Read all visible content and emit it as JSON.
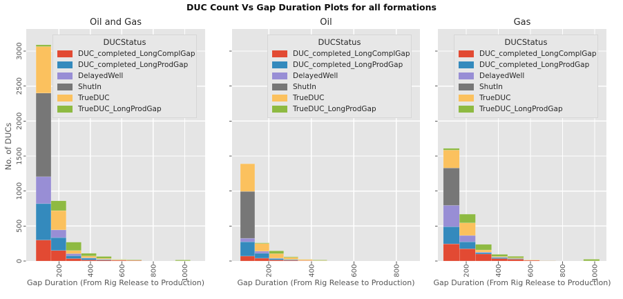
{
  "figure": {
    "title": "DUC Count Vs Gap Duration Plots for all formations"
  },
  "axes": {
    "ylabel": "No. of DUCs",
    "xlabel": "Gap Duration (From Rig Release to Production)",
    "yticks": [
      0,
      500,
      1000,
      1500,
      2000,
      2500,
      3000
    ],
    "ylim": [
      0,
      3316
    ]
  },
  "legend": {
    "title": "DUCStatus",
    "entries": [
      {
        "label": "DUC_completed_LongComplGap",
        "color": "#E24A33"
      },
      {
        "label": "DUC_completed_LongProdGap",
        "color": "#348ABD"
      },
      {
        "label": "DelayedWell",
        "color": "#988ED5"
      },
      {
        "label": "ShutIn",
        "color": "#777777"
      },
      {
        "label": "TrueDUC",
        "color": "#FBC15E"
      },
      {
        "label": "TrueDUC_LongProdGap",
        "color": "#8EBA42"
      }
    ]
  },
  "colors": {
    "panel_bg": "#E5E5E5",
    "grid": "#FFFFFF",
    "tick_label": "#555555",
    "title_text": "#262626"
  },
  "chart_data": [
    {
      "type": "bar",
      "mode": "stacked-histogram",
      "title": "Oil and Gas",
      "xlabel": "Gap Duration (From Rig Release to Production)",
      "ylabel": "No. of DUCs",
      "legend_position": "upper right",
      "grid": true,
      "series_order": [
        "DUC_completed_LongComplGap",
        "DUC_completed_LongProdGap",
        "DelayedWell",
        "ShutIn",
        "TrueDUC",
        "TrueDUC_LongProdGap"
      ],
      "xticks": [
        200,
        400,
        600,
        800,
        1000
      ],
      "xlim": [
        -8,
        1130
      ],
      "bins": [
        {
          "x0": 54,
          "x1": 150,
          "counts": [
            300,
            520,
            385,
            1195,
            665,
            25
          ]
        },
        {
          "x0": 150,
          "x1": 246,
          "counts": [
            150,
            185,
            110,
            0,
            275,
            140
          ]
        },
        {
          "x0": 246,
          "x1": 342,
          "counts": [
            35,
            40,
            30,
            0,
            45,
            120
          ]
        },
        {
          "x0": 342,
          "x1": 438,
          "counts": [
            15,
            25,
            6,
            0,
            26,
            38
          ]
        },
        {
          "x0": 438,
          "x1": 534,
          "counts": [
            12,
            10,
            3,
            0,
            12,
            28
          ]
        },
        {
          "x0": 534,
          "x1": 630,
          "counts": [
            10,
            4,
            0,
            0,
            8,
            4
          ]
        },
        {
          "x0": 630,
          "x1": 726,
          "counts": [
            8,
            0,
            0,
            0,
            3,
            8
          ]
        },
        {
          "x0": 940,
          "x1": 1036,
          "counts": [
            2,
            0,
            0,
            0,
            0,
            13
          ]
        }
      ]
    },
    {
      "type": "bar",
      "mode": "stacked-histogram",
      "title": "Oil",
      "xlabel": "Gap Duration (From Rig Release to Production)",
      "ylabel": "No. of DUCs",
      "legend_position": "upper right",
      "grid": true,
      "series_order": [
        "DUC_completed_LongComplGap",
        "DUC_completed_LongProdGap",
        "DelayedWell",
        "ShutIn",
        "TrueDUC",
        "TrueDUC_LongProdGap"
      ],
      "xticks": [
        200,
        400,
        600,
        800
      ],
      "xlim": [
        27,
        911
      ],
      "bins": [
        {
          "x0": 66,
          "x1": 134,
          "counts": [
            70,
            205,
            50,
            670,
            395,
            0
          ]
        },
        {
          "x0": 134,
          "x1": 202,
          "counts": [
            40,
            70,
            30,
            0,
            110,
            10
          ]
        },
        {
          "x0": 202,
          "x1": 270,
          "counts": [
            15,
            20,
            5,
            0,
            65,
            40
          ]
        },
        {
          "x0": 270,
          "x1": 338,
          "counts": [
            10,
            10,
            2,
            0,
            30,
            10
          ]
        },
        {
          "x0": 338,
          "x1": 406,
          "counts": [
            5,
            3,
            0,
            0,
            15,
            2
          ]
        },
        {
          "x0": 406,
          "x1": 474,
          "counts": [
            3,
            0,
            0,
            0,
            3,
            9
          ]
        }
      ]
    },
    {
      "type": "bar",
      "mode": "stacked-histogram",
      "title": "Gas",
      "xlabel": "Gap Duration (From Rig Release to Production)",
      "ylabel": "No. of DUCs",
      "legend_position": "upper right",
      "grid": true,
      "series_order": [
        "DUC_completed_LongComplGap",
        "DUC_completed_LongProdGap",
        "DelayedWell",
        "ShutIn",
        "TrueDUC",
        "TrueDUC_LongProdGap"
      ],
      "xticks": [
        200,
        400,
        600,
        800,
        1000
      ],
      "xlim": [
        24,
        1073
      ],
      "bins": [
        {
          "x0": 58,
          "x1": 158,
          "counts": [
            245,
            245,
            305,
            535,
            255,
            25
          ]
        },
        {
          "x0": 158,
          "x1": 258,
          "counts": [
            175,
            100,
            90,
            0,
            180,
            125
          ]
        },
        {
          "x0": 258,
          "x1": 358,
          "counts": [
            100,
            20,
            8,
            0,
            30,
            80
          ]
        },
        {
          "x0": 358,
          "x1": 458,
          "counts": [
            35,
            15,
            5,
            0,
            10,
            30
          ]
        },
        {
          "x0": 458,
          "x1": 558,
          "counts": [
            25,
            10,
            0,
            0,
            10,
            22
          ]
        },
        {
          "x0": 558,
          "x1": 658,
          "counts": [
            10,
            2,
            0,
            0,
            6,
            2
          ]
        },
        {
          "x0": 658,
          "x1": 758,
          "counts": [
            4,
            1,
            0,
            0,
            1,
            2
          ]
        },
        {
          "x0": 930,
          "x1": 1030,
          "counts": [
            2,
            0,
            0,
            0,
            0,
            23
          ]
        }
      ]
    }
  ]
}
